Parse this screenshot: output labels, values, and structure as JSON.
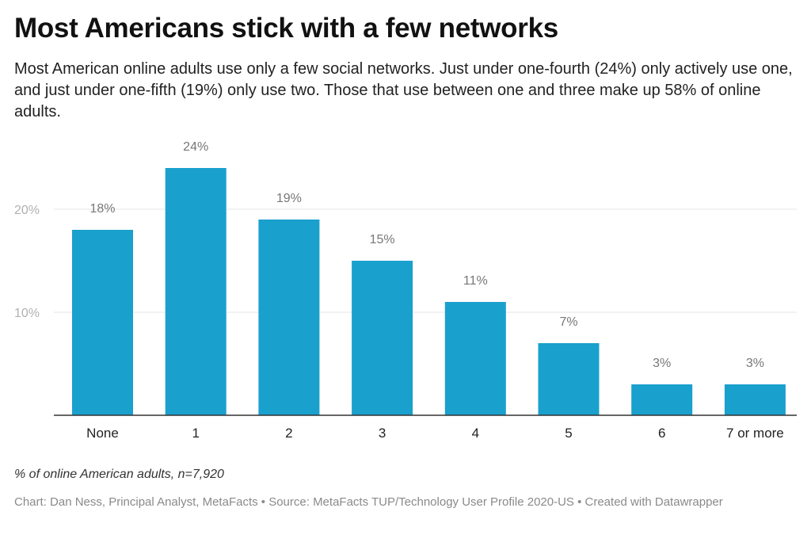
{
  "title": "Most Americans stick with a few networks",
  "subtitle": "Most American online adults use only a few social networks. Just under one-fourth (24%) only actively use one, and just under one-fifth (19%) only use two. Those that use between one and three make up 58% of online adults.",
  "notes": "% of online American adults, n=7,920",
  "credit": "Chart: Dan Ness, Principal Analyst, MetaFacts • Source: MetaFacts TUP/Technology User Profile 2020-US • Created with Datawrapper",
  "colors": {
    "bar": "#1aa0cd",
    "grid": "#e6e6e6",
    "axis": "#333333",
    "label": "#777777",
    "tick": "#b0b0b0"
  },
  "chart_data": {
    "type": "bar",
    "categories": [
      "None",
      "1",
      "2",
      "3",
      "4",
      "5",
      "6",
      "7 or more"
    ],
    "values": [
      18,
      24,
      19,
      15,
      11,
      7,
      3,
      3
    ],
    "value_labels": [
      "18%",
      "24%",
      "19%",
      "15%",
      "11%",
      "7%",
      "3%",
      "3%"
    ],
    "yticks": [
      10,
      20
    ],
    "ytick_labels": [
      "10%",
      "20%"
    ],
    "ylim": [
      0,
      20
    ],
    "grid": true
  }
}
